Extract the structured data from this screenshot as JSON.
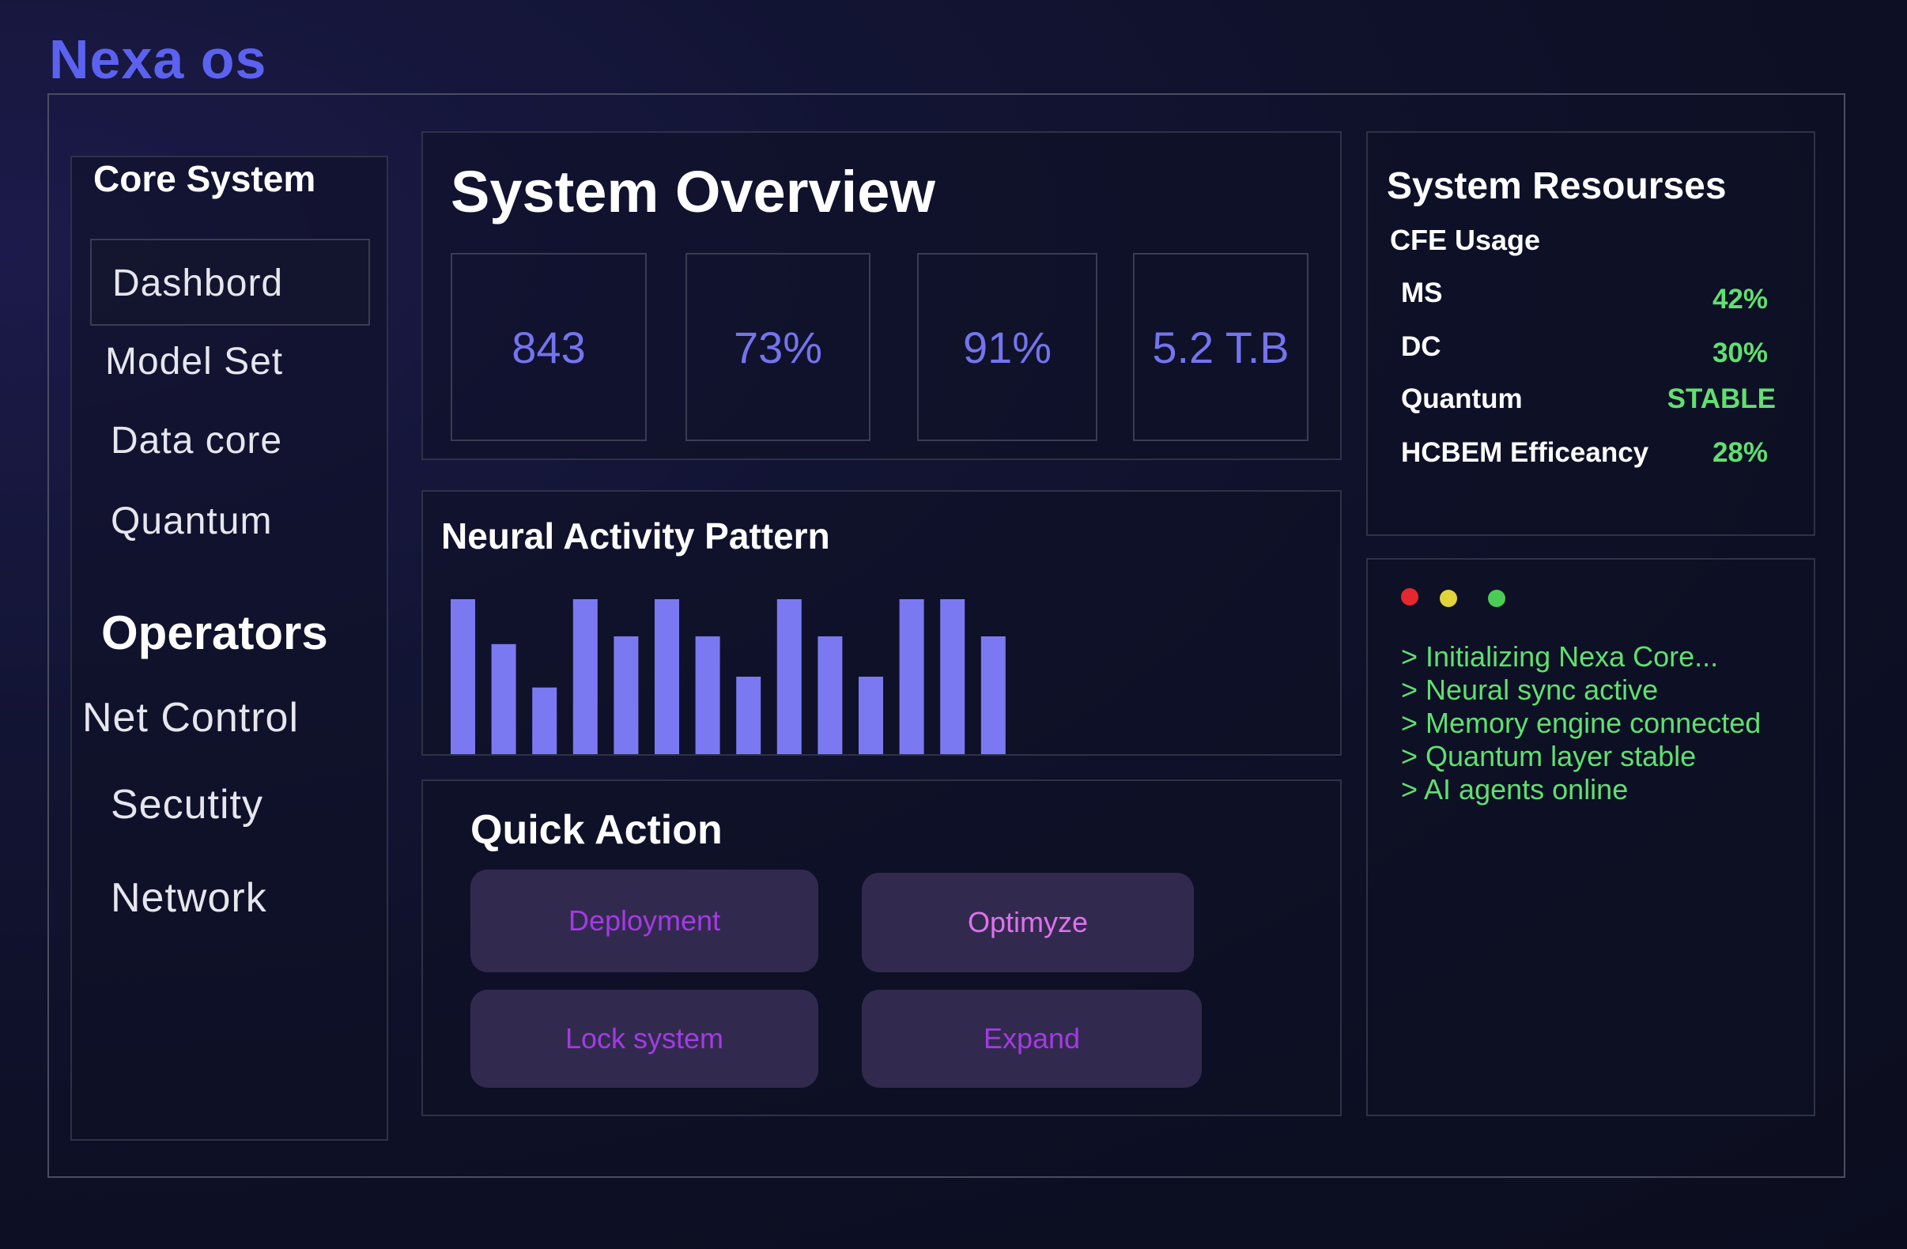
{
  "app": {
    "title": "Nexa os"
  },
  "sidebar": {
    "core_heading": "Core System",
    "core_items": [
      {
        "label": "Dashbord",
        "active": true
      },
      {
        "label": "Model Set",
        "active": false
      },
      {
        "label": "Data core",
        "active": false
      },
      {
        "label": "Quantum",
        "active": false
      }
    ],
    "operators_heading": "Operators",
    "operator_items": [
      {
        "label": "Net Control"
      },
      {
        "label": "Secutity"
      },
      {
        "label": "Network"
      }
    ]
  },
  "overview": {
    "title": "System Overview",
    "stats": [
      "843",
      "73%",
      "91%",
      "5.2 T.B"
    ],
    "stat_color": "#7474ee"
  },
  "neural": {
    "title": "Neural Activity Pattern"
  },
  "chart_data": {
    "type": "bar",
    "title": "Neural Activity Pattern",
    "values": [
      100,
      71,
      43,
      100,
      76,
      100,
      76,
      50,
      100,
      76,
      50,
      100,
      100,
      76
    ],
    "ylim": [
      0,
      100
    ],
    "grid": false,
    "legend": "none",
    "bar_color": "#7b79f2"
  },
  "quick_action": {
    "title": "Quick Action",
    "buttons": [
      {
        "label": "Deployment",
        "color": "#a43ae4"
      },
      {
        "label": "Optimyze",
        "color": "#e070f0"
      },
      {
        "label": "Lock system",
        "color": "#a43ae4"
      },
      {
        "label": "Expand",
        "color": "#a43ae4"
      }
    ]
  },
  "resources": {
    "title": "System Resourses",
    "subtitle": "CFE Usage",
    "rows": [
      {
        "label": "MS",
        "value": "42%"
      },
      {
        "label": "DC",
        "value": "30%"
      },
      {
        "label": "Quantum",
        "value": "STABLE"
      },
      {
        "label": "HCBEM Efficeancy",
        "value": "28%"
      }
    ],
    "value_color": "#5fe070"
  },
  "terminal": {
    "dots": [
      "#e5282e",
      "#e0d43a",
      "#4ccc55"
    ],
    "lines": [
      "> Initializing Nexa Core...",
      "> Neural sync active",
      "> Memory engine connected",
      "> Quantum layer stable",
      "> AI agents online"
    ]
  }
}
